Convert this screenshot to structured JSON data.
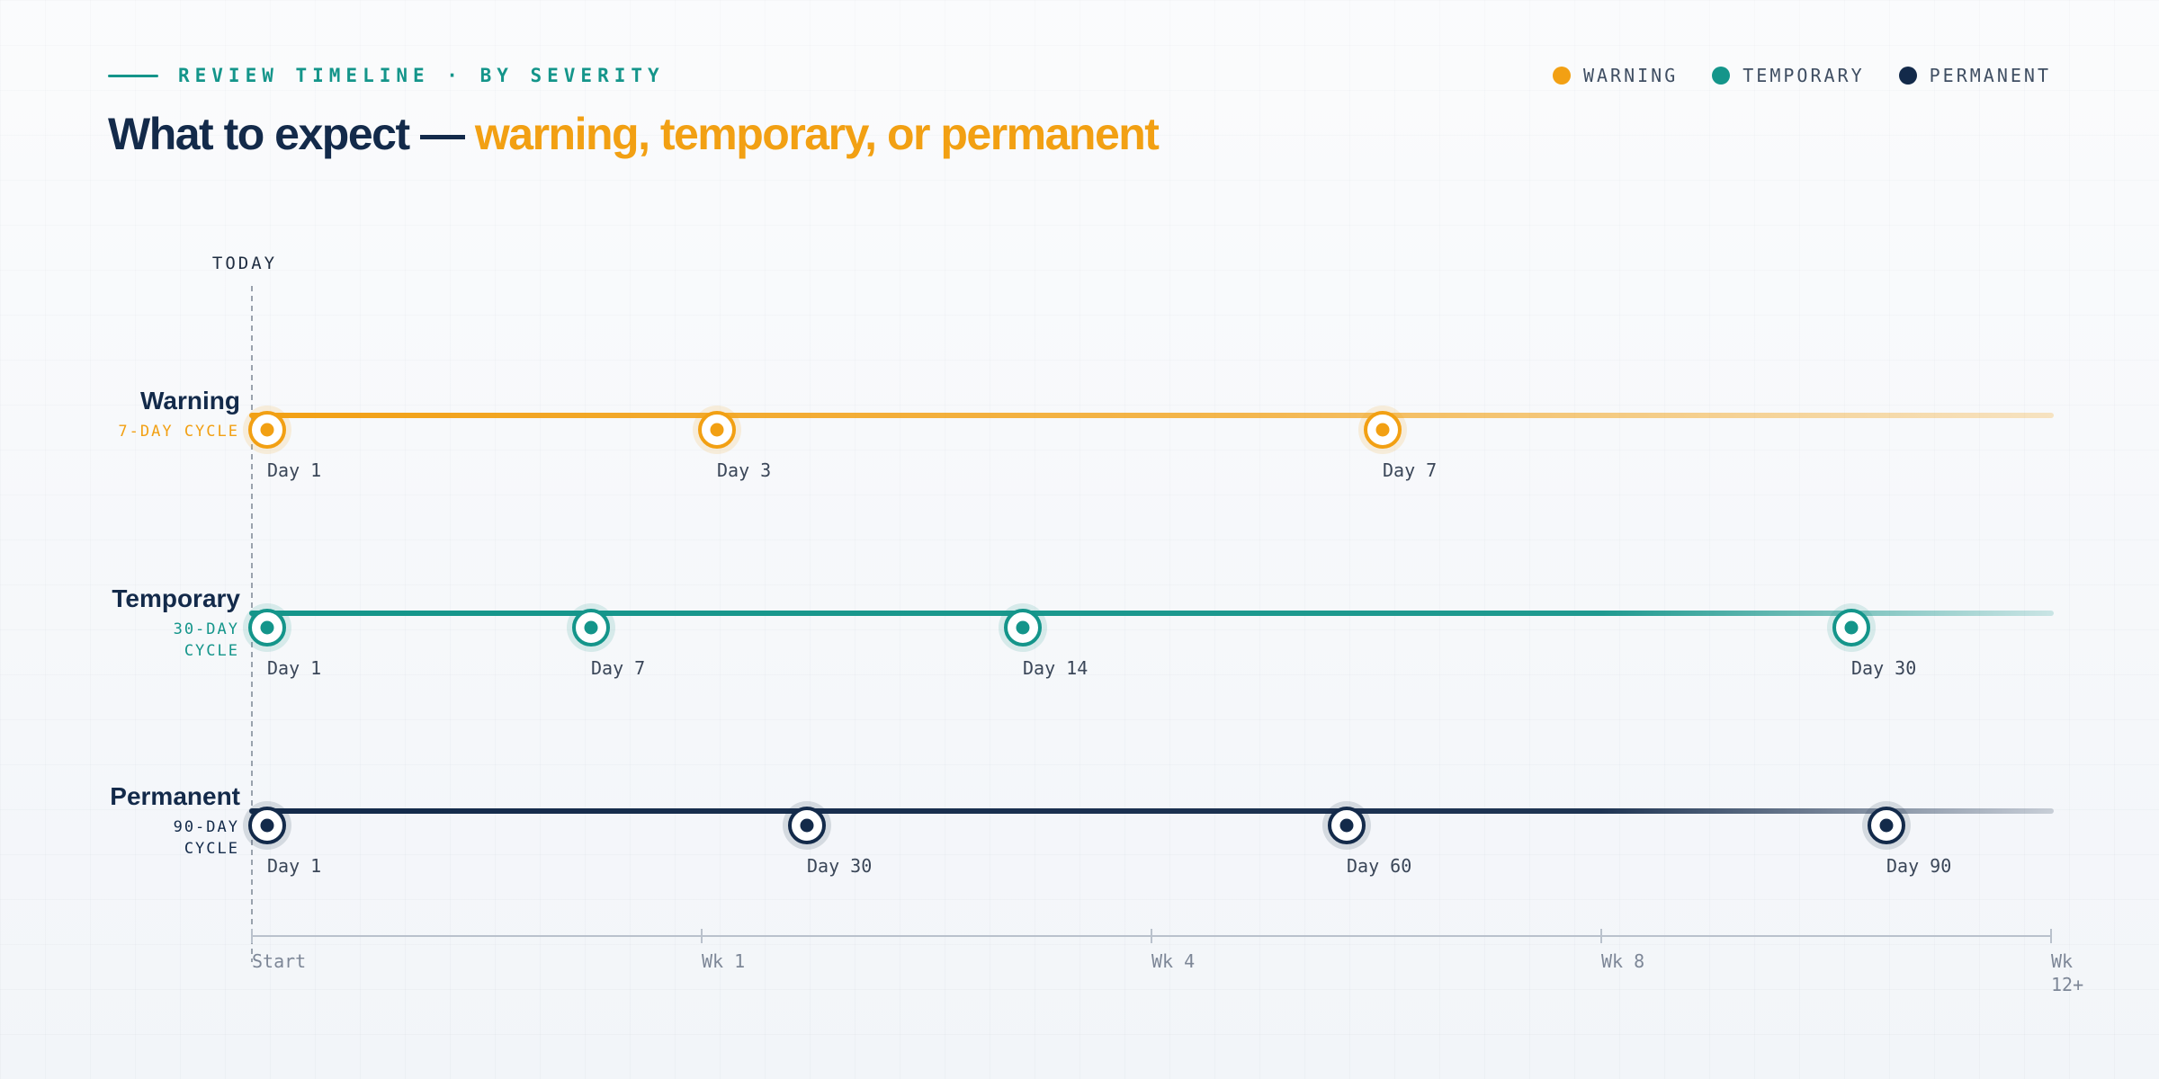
{
  "header": {
    "eyebrow": "REVIEW TIMELINE · BY SEVERITY",
    "title_main": "What to expect —",
    "title_highlight": "warning, temporary, or permanent"
  },
  "legend": [
    {
      "label": "WARNING",
      "color": "#f2a013"
    },
    {
      "label": "TEMPORARY",
      "color": "#14958a"
    },
    {
      "label": "PERMANENT",
      "color": "#132a4a"
    }
  ],
  "today_label": "TODAY",
  "axis": {
    "ticks": [
      {
        "lines": [
          "Start"
        ]
      },
      {
        "lines": [
          "Wk 1"
        ]
      },
      {
        "lines": [
          "Wk 4"
        ]
      },
      {
        "lines": [
          "Wk 8"
        ]
      },
      {
        "lines": [
          "Wk",
          "12+"
        ]
      }
    ]
  },
  "rows": [
    {
      "name": "Warning",
      "cycle": [
        "7-DAY CYCLE"
      ],
      "color": "#f2a013",
      "fill": "#ffffff",
      "milestones": [
        "Day 1",
        "Day 3",
        "Day 7"
      ]
    },
    {
      "name": "Temporary",
      "cycle": [
        "30-DAY",
        "CYCLE"
      ],
      "color": "#14958a",
      "fill": "#ffffff",
      "milestones": [
        "Day 1",
        "Day 7",
        "Day 14",
        "Day 30"
      ]
    },
    {
      "name": "Permanent",
      "cycle": [
        "90-DAY",
        "CYCLE"
      ],
      "color": "#132a4a",
      "fill": "#ffffff",
      "milestones": [
        "Day 1",
        "Day 30",
        "Day 60",
        "Day 90"
      ]
    }
  ]
}
